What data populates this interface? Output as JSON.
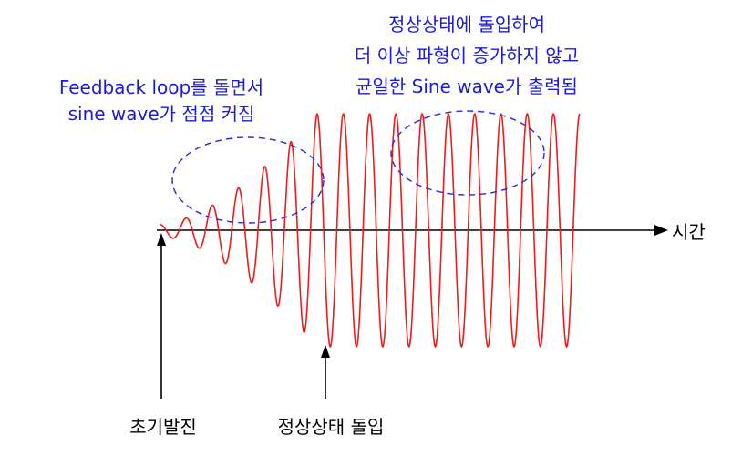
{
  "axis": {
    "time_label": "시간"
  },
  "annotations": {
    "growth": {
      "line1": "Feedback loop를 돌면서",
      "line2": "sine wave가 점점 커짐"
    },
    "steady": {
      "line1": "정상상태에 돌입하여",
      "line2": "더 이상 파형이 증가하지 않고",
      "line3": "균일한 Sine wave가 출력됨"
    }
  },
  "markers": {
    "start_label": "초기발진",
    "steady_label": "정상상태 돌입"
  },
  "colors": {
    "wave": "#ee1c1c",
    "annotation_text": "#1b1bd8",
    "ellipse": "#2a2ad8",
    "axis": "#000000"
  },
  "waveform": {
    "cycles_total": 16,
    "growth_cycles": 6,
    "steady_amplitude_fraction": 1.0
  }
}
